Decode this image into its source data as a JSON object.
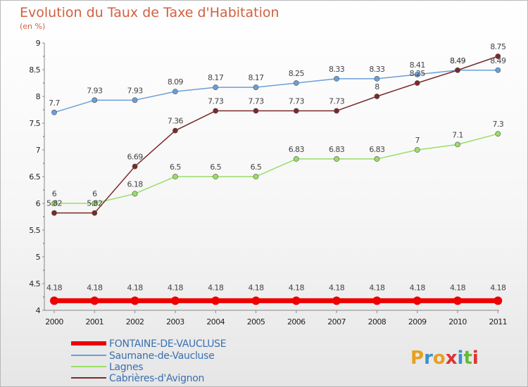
{
  "chart_data": {
    "type": "line",
    "title": "Evolution du Taux de Taxe d'Habitation",
    "subtitle": "(en %)",
    "x": [
      "2000",
      "2001",
      "2002",
      "2003",
      "2004",
      "2005",
      "2006",
      "2007",
      "2008",
      "2009",
      "2010",
      "2011"
    ],
    "ylim": [
      4,
      9
    ],
    "yticks": [
      "4",
      "4.5",
      "5",
      "5.5",
      "6",
      "6.5",
      "7",
      "7.5",
      "8",
      "8.5",
      "9"
    ],
    "grid": false,
    "legend_position": "bottom-left",
    "series": [
      {
        "name": "FONTAINE-DE-VAUCLUSE",
        "color": "#ee0000",
        "values": [
          4.18,
          4.18,
          4.18,
          4.18,
          4.18,
          4.18,
          4.18,
          4.18,
          4.18,
          4.18,
          4.18,
          4.18
        ],
        "labels": [
          "4.18",
          "4.18",
          "4.18",
          "4.18",
          "4.18",
          "4.18",
          "4.18",
          "4.18",
          "4.18",
          "4.18",
          "4.18",
          "4.18"
        ]
      },
      {
        "name": "Saumane-de-Vaucluse",
        "color": "#6a9fd8",
        "values": [
          7.7,
          7.93,
          7.93,
          8.09,
          8.17,
          8.17,
          8.25,
          8.33,
          8.33,
          8.41,
          8.49,
          8.49
        ],
        "labels": [
          "7.7",
          "7.93",
          "7.93",
          "8.09",
          "8.17",
          "8.17",
          "8.25",
          "8.33",
          "8.33",
          "8.41",
          "8.49",
          "8.49"
        ]
      },
      {
        "name": "Lagnes",
        "color": "#99dd66",
        "values": [
          6,
          6,
          6.18,
          6.5,
          6.5,
          6.5,
          6.83,
          6.83,
          6.83,
          7,
          7.1,
          7.3
        ],
        "labels": [
          "6",
          "6",
          "6.18",
          "6.5",
          "6.5",
          "6.5",
          "6.83",
          "6.83",
          "6.83",
          "7",
          "7.1",
          "7.3"
        ]
      },
      {
        "name": "Cabrières-d'Avignon",
        "color": "#7a2a2a",
        "values": [
          5.82,
          5.82,
          6.69,
          7.36,
          7.73,
          7.73,
          7.73,
          7.73,
          8,
          8.25,
          8.49,
          8.75
        ],
        "labels": [
          "5.82",
          "5.82",
          "6.69",
          "7.36",
          "7.73",
          "7.73",
          "7.73",
          "7.73",
          "8",
          "8.25",
          "8.49",
          "8.75"
        ]
      }
    ]
  },
  "logo": {
    "text": "Proxiti",
    "colors": [
      "#e8a020",
      "#3a8fd0",
      "#e8a020",
      "#dd3333",
      "#3a8fd0",
      "#66bb33",
      "#dd3333"
    ]
  }
}
